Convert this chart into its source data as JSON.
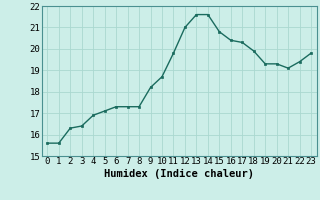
{
  "x": [
    0,
    1,
    2,
    3,
    4,
    5,
    6,
    7,
    8,
    9,
    10,
    11,
    12,
    13,
    14,
    15,
    16,
    17,
    18,
    19,
    20,
    21,
    22,
    23
  ],
  "y": [
    15.6,
    15.6,
    16.3,
    16.4,
    16.9,
    17.1,
    17.3,
    17.3,
    17.3,
    18.2,
    18.7,
    19.8,
    21.0,
    21.6,
    21.6,
    20.8,
    20.4,
    20.3,
    19.9,
    19.3,
    19.3,
    19.1,
    19.4,
    19.8
  ],
  "xlabel": "Humidex (Indice chaleur)",
  "bg_color": "#cceee8",
  "line_color": "#1a6b5e",
  "marker_color": "#1a6b5e",
  "grid_color": "#aad8d0",
  "ylim": [
    15,
    22
  ],
  "xlim": [
    -0.5,
    23.5
  ],
  "yticks": [
    15,
    16,
    17,
    18,
    19,
    20,
    21,
    22
  ],
  "xticks": [
    0,
    1,
    2,
    3,
    4,
    5,
    6,
    7,
    8,
    9,
    10,
    11,
    12,
    13,
    14,
    15,
    16,
    17,
    18,
    19,
    20,
    21,
    22,
    23
  ],
  "tick_fontsize": 6.5,
  "xlabel_fontsize": 7.5,
  "linewidth": 1.0,
  "markersize": 2.0
}
